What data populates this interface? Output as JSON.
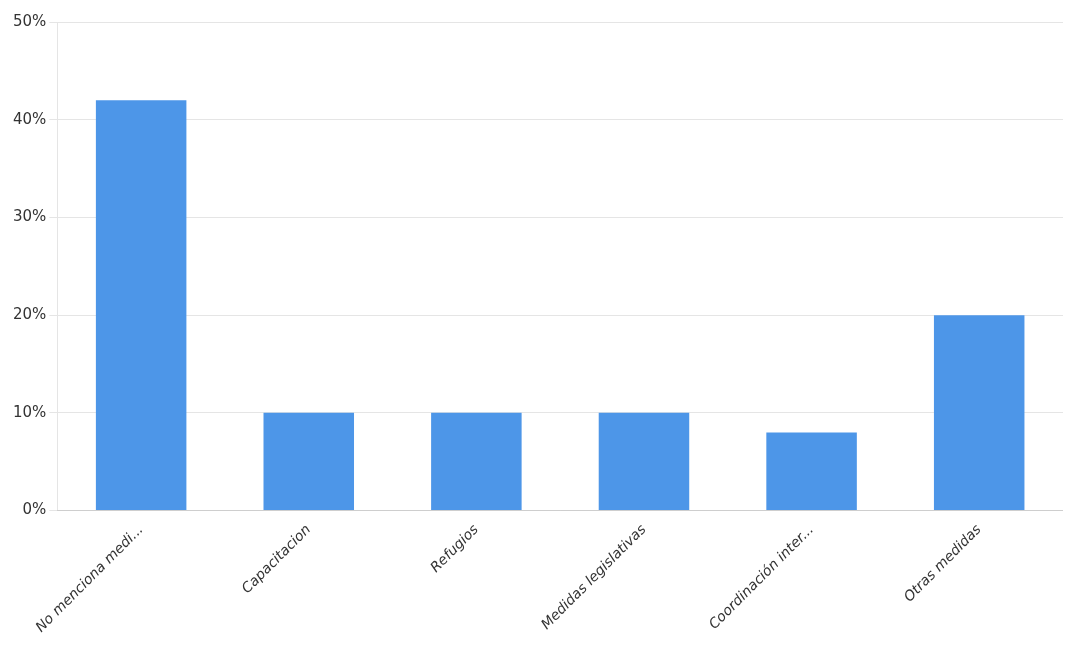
{
  "chart_data": {
    "type": "bar",
    "categories": [
      "No menciona medi...",
      "Capacitacion",
      "Refugios",
      "Medidas legislativas",
      "Coordinación inter...",
      "Otras medidas"
    ],
    "values": [
      42,
      10,
      10,
      10,
      8,
      20
    ],
    "color": "#4d96e8",
    "ylim": [
      0,
      50
    ],
    "yticks": [
      {
        "value": 0,
        "label": "0%"
      },
      {
        "value": 10,
        "label": "10%"
      },
      {
        "value": 20,
        "label": "20%"
      },
      {
        "value": 30,
        "label": "30%"
      },
      {
        "value": 40,
        "label": "40%"
      },
      {
        "value": 50,
        "label": "50%"
      }
    ],
    "grid": true
  }
}
